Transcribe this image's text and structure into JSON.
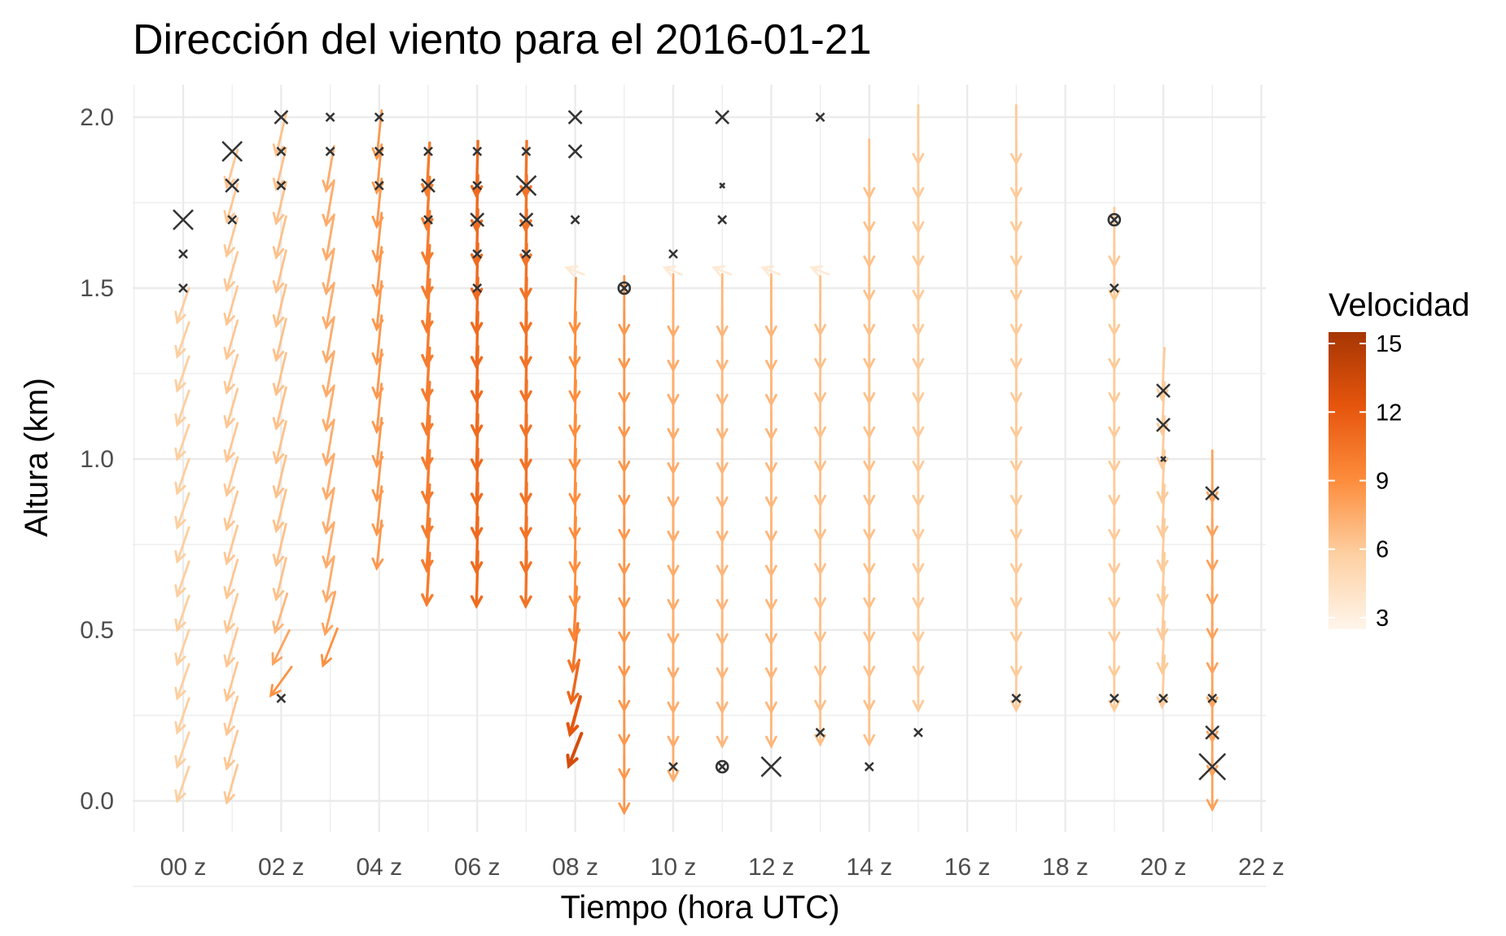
{
  "chart_data": {
    "type": "vector field (wind barbs)",
    "title": "Dirección del viento para el 2016-01-21",
    "xlabel": "Tiempo (hora UTC)",
    "ylabel": "Altura (km)",
    "x_ticks": [
      "00 z",
      "02 z",
      "04 z",
      "06 z",
      "08 z",
      "10 z",
      "12 z",
      "14 z",
      "16 z",
      "18 z",
      "20 z",
      "22 z"
    ],
    "y_ticks": [
      "0.0",
      "0.5",
      "1.0",
      "1.5",
      "2.0"
    ],
    "xlim_hours": [
      -1,
      22
    ],
    "ylim_km": [
      -0.1,
      2.1
    ],
    "grid": true,
    "legend": {
      "title": "Velocidad",
      "position": "right",
      "ticks": [
        "15",
        "12",
        "9",
        "6",
        "3"
      ],
      "range": [
        2.5,
        15.5
      ],
      "colors": [
        "#fff5eb",
        "#fdd0a2",
        "#fd8d3c",
        "#e6550d",
        "#a63603"
      ]
    },
    "vector_note": "each arrow: u = x-displacement in hours, v = y-displacement in km, speed = colour value",
    "series": [
      {
        "hour": 0,
        "heights": [
          0.05,
          0.15,
          0.25,
          0.35,
          0.45,
          0.55,
          0.65,
          0.75,
          0.85,
          0.95,
          1.05,
          1.15,
          1.25,
          1.35,
          1.45
        ],
        "u": -0.24,
        "v": -0.1,
        "speed": 5.8
      },
      {
        "hour": 1,
        "heights": [
          0.05,
          0.15,
          0.25,
          0.35,
          0.45,
          0.55,
          0.65,
          0.75,
          0.85,
          0.95,
          1.05,
          1.15,
          1.25,
          1.35,
          1.45,
          1.55,
          1.65,
          1.75,
          1.85
        ],
        "u": -0.22,
        "v": -0.11,
        "speed": 6.2
      },
      {
        "hour": 2,
        "heights": [
          0.35,
          0.45,
          0.55,
          0.65,
          0.75,
          0.85,
          0.95,
          1.05,
          1.15,
          1.25,
          1.35,
          1.45,
          1.55,
          1.65,
          1.75,
          1.85,
          1.95
        ],
        "u": -0.2,
        "v": -0.12,
        "speed": 6.5
      },
      {
        "hour": 3,
        "heights": [
          0.45,
          0.55,
          0.65,
          0.75,
          0.85,
          0.95,
          1.05,
          1.15,
          1.25,
          1.35,
          1.45,
          1.55,
          1.65,
          1.75,
          1.85
        ],
        "u": -0.16,
        "v": -0.13,
        "speed": 7.5
      },
      {
        "hour": 4,
        "heights": [
          0.75,
          0.85,
          0.95,
          1.05,
          1.15,
          1.25,
          1.35,
          1.45,
          1.55,
          1.65,
          1.75,
          1.85,
          1.95
        ],
        "u": -0.1,
        "v": -0.14,
        "speed": 8.5
      },
      {
        "hour": 5,
        "heights": [
          0.65,
          0.75,
          0.85,
          0.95,
          1.05,
          1.15,
          1.25,
          1.35,
          1.45,
          1.55,
          1.65,
          1.75,
          1.85
        ],
        "u": -0.06,
        "v": -0.15,
        "speed": 10.0
      },
      {
        "hour": 6,
        "heights": [
          0.65,
          0.75,
          0.85,
          0.95,
          1.05,
          1.15,
          1.25,
          1.35,
          1.45,
          1.55,
          1.65,
          1.75,
          1.85
        ],
        "u": -0.03,
        "v": -0.16,
        "speed": 11.0
      },
      {
        "hour": 7,
        "heights": [
          0.65,
          0.75,
          0.85,
          0.95,
          1.05,
          1.15,
          1.25,
          1.35,
          1.45,
          1.55,
          1.65,
          1.75,
          1.85
        ],
        "u": -0.02,
        "v": -0.16,
        "speed": 10.5
      },
      {
        "hour": 8,
        "heights": [
          0.15,
          0.25,
          0.35,
          0.45,
          0.55,
          0.65,
          0.75,
          0.85,
          0.95,
          1.05,
          1.15,
          1.25,
          1.35,
          1.45,
          1.55
        ],
        "u": -0.03,
        "v": -0.16,
        "speed": 9.0
      },
      {
        "hour": 9,
        "heights": [
          0.05,
          0.15,
          0.25,
          0.35,
          0.45,
          0.55,
          0.65,
          0.75,
          0.85,
          0.95,
          1.05,
          1.15,
          1.25,
          1.35,
          1.45
        ],
        "u": 0.0,
        "v": -0.17,
        "speed": 8.5
      },
      {
        "hour": 10,
        "heights": [
          0.15,
          0.25,
          0.35,
          0.45,
          0.55,
          0.65,
          0.75,
          0.85,
          0.95,
          1.05,
          1.15,
          1.25,
          1.35,
          1.45,
          1.55
        ],
        "u": 0.0,
        "v": -0.18,
        "speed": 7.5
      },
      {
        "hour": 11,
        "heights": [
          0.25,
          0.35,
          0.45,
          0.55,
          0.65,
          0.75,
          0.85,
          0.95,
          1.05,
          1.15,
          1.25,
          1.35,
          1.45,
          1.55
        ],
        "u": 0.0,
        "v": -0.18,
        "speed": 7.0
      },
      {
        "hour": 12,
        "heights": [
          0.25,
          0.35,
          0.45,
          0.55,
          0.65,
          0.75,
          0.85,
          0.95,
          1.05,
          1.15,
          1.25,
          1.35,
          1.45,
          1.55
        ],
        "u": 0.0,
        "v": -0.18,
        "speed": 7.0
      },
      {
        "hour": 13,
        "heights": [
          0.25,
          0.35,
          0.45,
          0.55,
          0.65,
          0.75,
          0.85,
          0.95,
          1.05,
          1.15,
          1.25,
          1.35,
          1.45,
          1.55
        ],
        "u": 0.0,
        "v": -0.17,
        "speed": 6.5
      },
      {
        "hour": 14,
        "heights": [
          0.25,
          0.35,
          0.45,
          0.55,
          0.65,
          0.75,
          0.85,
          0.95,
          1.05,
          1.15,
          1.25,
          1.35,
          1.45,
          1.55,
          1.65,
          1.75,
          1.85
        ],
        "u": 0.0,
        "v": -0.17,
        "speed": 6.5
      },
      {
        "hour": 15,
        "heights": [
          0.35,
          0.45,
          0.55,
          0.65,
          0.75,
          0.85,
          0.95,
          1.05,
          1.15,
          1.25,
          1.35,
          1.45,
          1.55,
          1.65,
          1.75,
          1.85,
          1.95
        ],
        "u": 0.0,
        "v": -0.17,
        "speed": 6.0
      },
      {
        "hour": 17,
        "heights": [
          0.35,
          0.45,
          0.55,
          0.65,
          0.75,
          0.85,
          0.95,
          1.05,
          1.15,
          1.25,
          1.35,
          1.45,
          1.55,
          1.65,
          1.75,
          1.85,
          1.95
        ],
        "u": 0.0,
        "v": -0.17,
        "speed": 6.0
      },
      {
        "hour": 19,
        "heights": [
          0.35,
          0.45,
          0.55,
          0.65,
          0.75,
          0.85,
          0.95,
          1.05,
          1.15,
          1.25,
          1.35,
          1.45,
          1.55,
          1.65
        ],
        "u": 0.0,
        "v": -0.17,
        "speed": 6.0
      },
      {
        "hour": 20,
        "heights": [
          0.35,
          0.45,
          0.55,
          0.65,
          0.75,
          0.85,
          0.95,
          1.05,
          1.15,
          1.25
        ],
        "u": -0.05,
        "v": -0.15,
        "speed": 6.0
      },
      {
        "hour": 21,
        "heights": [
          0.05,
          0.15,
          0.25,
          0.35,
          0.45,
          0.55,
          0.65,
          0.75,
          0.85,
          0.95
        ],
        "u": 0.0,
        "v": -0.15,
        "speed": 8.0
      }
    ],
    "calm_markers": [
      {
        "hour": 0,
        "height": 1.7,
        "size": "large"
      },
      {
        "hour": 0,
        "height": 1.6,
        "size": "small"
      },
      {
        "hour": 0,
        "height": 1.5,
        "size": "small"
      },
      {
        "hour": 1,
        "height": 1.9,
        "size": "large"
      },
      {
        "hour": 1,
        "height": 1.8,
        "size": "medium"
      },
      {
        "hour": 1,
        "height": 1.7,
        "size": "small"
      },
      {
        "hour": 2,
        "height": 2.0,
        "size": "medium"
      },
      {
        "hour": 2,
        "height": 1.9,
        "size": "small"
      },
      {
        "hour": 2,
        "height": 1.8,
        "size": "small"
      },
      {
        "hour": 2,
        "height": 0.3,
        "size": "small"
      },
      {
        "hour": 3,
        "height": 2.0,
        "size": "small"
      },
      {
        "hour": 3,
        "height": 1.9,
        "size": "small"
      },
      {
        "hour": 4,
        "height": 2.0,
        "size": "small"
      },
      {
        "hour": 4,
        "height": 1.9,
        "size": "small"
      },
      {
        "hour": 4,
        "height": 1.8,
        "size": "small"
      },
      {
        "hour": 5,
        "height": 1.9,
        "size": "small"
      },
      {
        "hour": 5,
        "height": 1.8,
        "size": "medium"
      },
      {
        "hour": 5,
        "height": 1.7,
        "size": "small"
      },
      {
        "hour": 6,
        "height": 1.9,
        "size": "small"
      },
      {
        "hour": 6,
        "height": 1.8,
        "size": "small"
      },
      {
        "hour": 6,
        "height": 1.7,
        "size": "medium"
      },
      {
        "hour": 6,
        "height": 1.6,
        "size": "small"
      },
      {
        "hour": 6,
        "height": 1.5,
        "size": "small"
      },
      {
        "hour": 7,
        "height": 1.9,
        "size": "small"
      },
      {
        "hour": 7,
        "height": 1.8,
        "size": "large"
      },
      {
        "hour": 7,
        "height": 1.7,
        "size": "medium"
      },
      {
        "hour": 7,
        "height": 1.6,
        "size": "small"
      },
      {
        "hour": 8,
        "height": 2.0,
        "size": "medium"
      },
      {
        "hour": 8,
        "height": 1.9,
        "size": "medium"
      },
      {
        "hour": 8,
        "height": 1.7,
        "size": "small"
      },
      {
        "hour": 9,
        "height": 1.5,
        "size": "circle"
      },
      {
        "hour": 10,
        "height": 1.6,
        "size": "small"
      },
      {
        "hour": 10,
        "height": 0.1,
        "size": "small"
      },
      {
        "hour": 11,
        "height": 2.0,
        "size": "medium"
      },
      {
        "hour": 11,
        "height": 1.8,
        "size": "dot"
      },
      {
        "hour": 11,
        "height": 1.7,
        "size": "small"
      },
      {
        "hour": 11,
        "height": 0.1,
        "size": "circle"
      },
      {
        "hour": 12,
        "height": 0.1,
        "size": "large"
      },
      {
        "hour": 13,
        "height": 2.0,
        "size": "small"
      },
      {
        "hour": 13,
        "height": 0.2,
        "size": "small"
      },
      {
        "hour": 14,
        "height": 0.1,
        "size": "small"
      },
      {
        "hour": 15,
        "height": 0.2,
        "size": "small"
      },
      {
        "hour": 17,
        "height": 0.3,
        "size": "small"
      },
      {
        "hour": 19,
        "height": 1.7,
        "size": "circle"
      },
      {
        "hour": 19,
        "height": 1.5,
        "size": "small"
      },
      {
        "hour": 19,
        "height": 0.3,
        "size": "small"
      },
      {
        "hour": 20,
        "height": 1.2,
        "size": "medium"
      },
      {
        "hour": 20,
        "height": 1.1,
        "size": "medium"
      },
      {
        "hour": 20,
        "height": 1.0,
        "size": "dot"
      },
      {
        "hour": 20,
        "height": 0.3,
        "size": "small"
      },
      {
        "hour": 21,
        "height": 0.9,
        "size": "medium"
      },
      {
        "hour": 21,
        "height": 0.3,
        "size": "small"
      },
      {
        "hour": 21,
        "height": 0.2,
        "size": "medium"
      },
      {
        "hour": 21,
        "height": 0.1,
        "size": "xlarge"
      }
    ]
  }
}
